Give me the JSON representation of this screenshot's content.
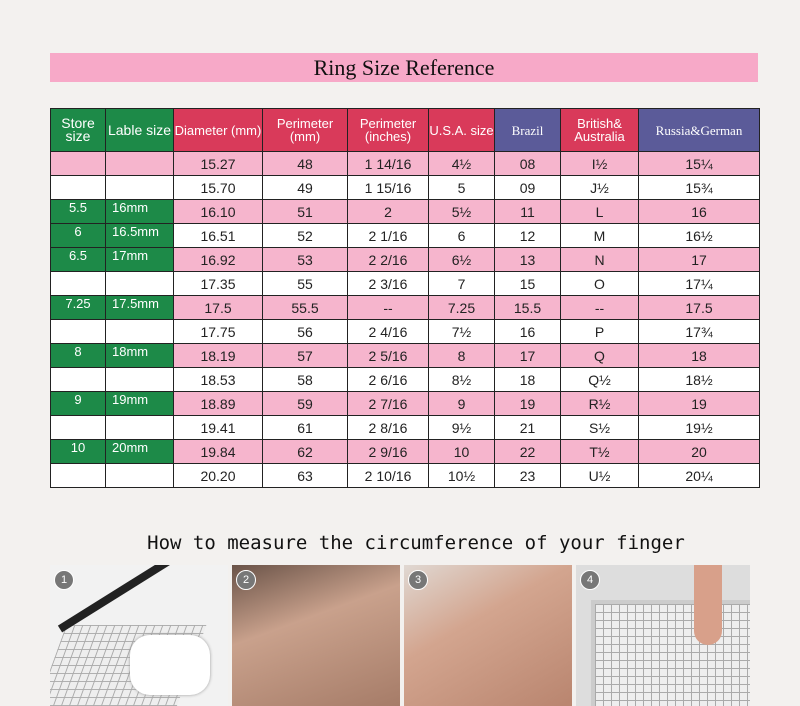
{
  "title": "Ring Size Reference",
  "headers": [
    "Store size",
    "Lable size",
    "Diameter (mm)",
    "Perimeter (mm)",
    "Perimeter (inches)",
    "U.S.A. size",
    "Brazil",
    "British& Australia",
    "Russia&German"
  ],
  "rows": [
    [
      "",
      "",
      "15.27",
      "48",
      "1 14/16",
      "4½",
      "08",
      "I½",
      "15¼"
    ],
    [
      "",
      "",
      "15.70",
      "49",
      "1 15/16",
      "5",
      "09",
      "J½",
      "15¾"
    ],
    [
      "5.5",
      "16mm",
      "16.10",
      "51",
      "2",
      "5½",
      "11",
      "L",
      "16"
    ],
    [
      "6",
      "16.5mm",
      "16.51",
      "52",
      "2 1/16",
      "6",
      "12",
      "M",
      "16½"
    ],
    [
      "6.5",
      "17mm",
      "16.92",
      "53",
      "2 2/16",
      "6½",
      "13",
      "N",
      "17"
    ],
    [
      "",
      "",
      "17.35",
      "55",
      "2 3/16",
      "7",
      "15",
      "O",
      "17¼"
    ],
    [
      "7.25",
      "17.5mm",
      "17.5",
      "55.5",
      "--",
      "7.25",
      "15.5",
      "--",
      "17.5"
    ],
    [
      "",
      "",
      "17.75",
      "56",
      "2 4/16",
      "7½",
      "16",
      "P",
      "17¾"
    ],
    [
      "8",
      "18mm",
      "18.19",
      "57",
      "2 5/16",
      "8",
      "17",
      "Q",
      "18"
    ],
    [
      "",
      "",
      "18.53",
      "58",
      "2 6/16",
      "8½",
      "18",
      "Q½",
      "18½"
    ],
    [
      "9",
      "19mm",
      "18.89",
      "59",
      "2 7/16",
      "9",
      "19",
      "R½",
      "19"
    ],
    [
      "",
      "",
      "19.41",
      "61",
      "2 8/16",
      "9½",
      "21",
      "S½",
      "19½"
    ],
    [
      "10",
      "20mm",
      "19.84",
      "62",
      "2 9/16",
      "10",
      "22",
      "T½",
      "20"
    ],
    [
      "",
      "",
      "20.20",
      "63",
      "2 10/16",
      "10½",
      "23",
      "U½",
      "20¼"
    ]
  ],
  "subtitle": "How to measure the circumference of your finger",
  "steps": [
    "1",
    "2",
    "3",
    "4"
  ],
  "colors": {
    "title_bg": "#f7a9c8",
    "green": "#1d8a48",
    "red": "#d93a5a",
    "purple": "#5b5b99",
    "pink_row": "#f6b5cd"
  }
}
